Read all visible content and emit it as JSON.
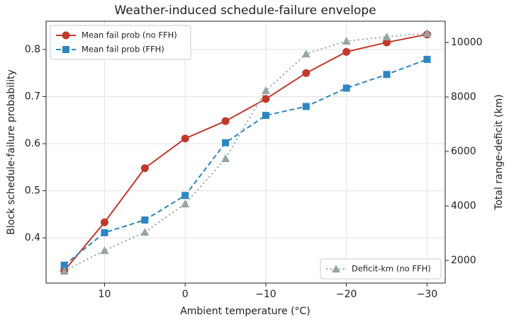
{
  "chart_data": {
    "type": "line",
    "title": "Weather-induced schedule-failure envelope",
    "x_label": "Ambient temperature (°C)",
    "y_label": "Block schedule-failure probability",
    "y2_label": "Total range-deficit (km)",
    "x": [
      15,
      10,
      5,
      0,
      -5,
      -10,
      -15,
      -20,
      -25,
      -30
    ],
    "xlim": [
      17.25,
      -32.25
    ],
    "xticks": [
      10,
      0,
      {
        "value": -10,
        "label": "−10"
      },
      {
        "value": -20,
        "label": "−20"
      },
      {
        "value": -30,
        "label": "−30"
      }
    ],
    "ylim": [
      0.304,
      0.86
    ],
    "yticks": [
      0.4,
      0.5,
      0.6,
      0.7,
      0.8
    ],
    "y2lim": [
      1170,
      10780
    ],
    "y2ticks": [
      2000,
      4000,
      6000,
      8000,
      10000
    ],
    "grid": true,
    "legend": "upper left",
    "y2_legend": "lower right",
    "series": [
      {
        "name": "Mean fail prob (no FFH)",
        "color": "#c0392b",
        "marker": "circle",
        "linestyle": "solid",
        "values": [
          0.33,
          0.433,
          0.548,
          0.611,
          0.648,
          0.695,
          0.75,
          0.795,
          0.815,
          0.832
        ]
      },
      {
        "name": "Mean fail prob (FFH)",
        "color": "#2e86c1",
        "marker": "square",
        "linestyle": "dashed",
        "values": [
          0.342,
          0.411,
          0.438,
          0.49,
          0.602,
          0.66,
          0.679,
          0.718,
          0.747,
          0.779
        ]
      },
      {
        "name": "Deficit-km (no FFH)",
        "color": "#95a5a6",
        "marker": "triangle",
        "linestyle": "dotted",
        "axis": "y2",
        "values": [
          1610,
          2364,
          3039,
          4078,
          5740,
          8234,
          9584,
          10052,
          10208,
          10338
        ]
      }
    ]
  }
}
